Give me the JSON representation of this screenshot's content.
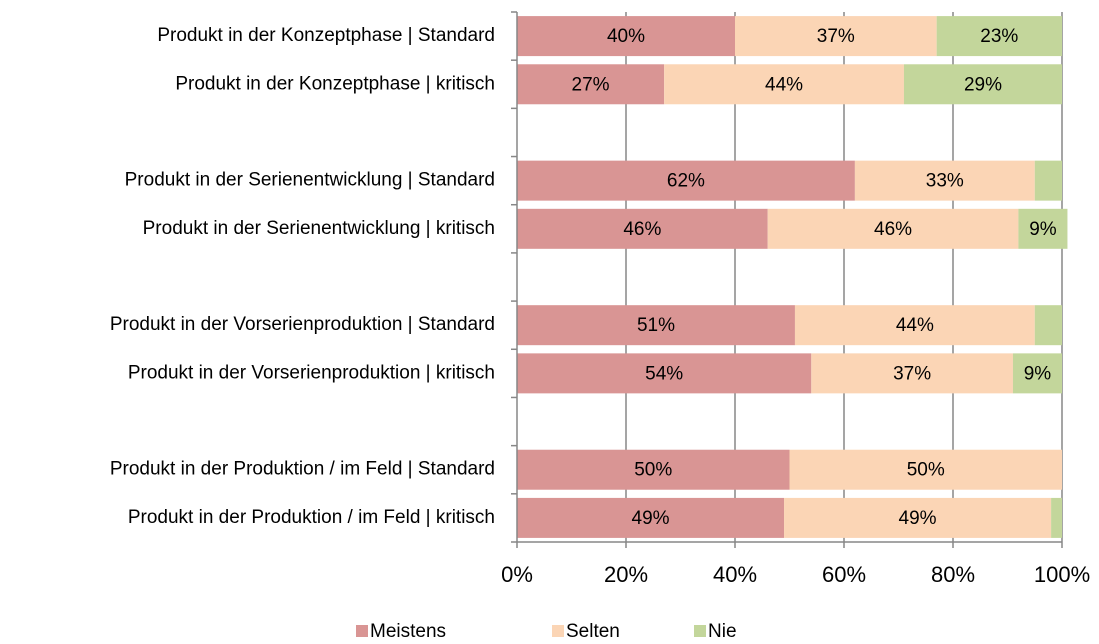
{
  "chart_data": {
    "type": "stacked_barh",
    "categories": [
      "Produkt in der Konzeptphase | Standard",
      "Produkt in der Konzeptphase | kritisch",
      null,
      "Produkt in der Serienentwicklung | Standard",
      "Produkt in der Serienentwicklung | kritisch",
      null,
      "Produkt in der Vorserienproduktion | Standard",
      "Produkt in der Vorserienproduktion | kritisch",
      null,
      "Produkt in der Produktion / im Feld | Standard",
      "Produkt in der Produktion / im Feld | kritisch"
    ],
    "series": [
      {
        "name": "Meistens",
        "color": "#d99594",
        "values": [
          40,
          27,
          null,
          62,
          46,
          null,
          51,
          54,
          null,
          50,
          49
        ],
        "value_labels": [
          "40%",
          "27%",
          null,
          "62%",
          "46%",
          null,
          "51%",
          "54%",
          null,
          "50%",
          "49%"
        ]
      },
      {
        "name": "Selten",
        "color": "#fbd5b5",
        "values": [
          37,
          44,
          null,
          33,
          46,
          null,
          44,
          37,
          null,
          50,
          49
        ],
        "value_labels": [
          "37%",
          "44%",
          null,
          "33%",
          "46%",
          null,
          "44%",
          "37%",
          null,
          "50%",
          "49%"
        ]
      },
      {
        "name": "Nie",
        "color": "#c3d69b",
        "values": [
          23,
          29,
          null,
          5,
          9,
          null,
          5,
          9,
          null,
          0,
          2
        ],
        "value_labels": [
          "23%",
          "29%",
          null,
          null,
          "9%",
          null,
          null,
          "9%",
          null,
          null,
          null
        ]
      }
    ],
    "xlim": [
      0,
      100
    ],
    "xticks": [
      {
        "value": 0,
        "label": "0%"
      },
      {
        "value": 20,
        "label": "20%"
      },
      {
        "value": 40,
        "label": "40%"
      },
      {
        "value": 60,
        "label": "60%"
      },
      {
        "value": 80,
        "label": "80%"
      },
      {
        "value": 100,
        "label": "100%"
      }
    ],
    "grid": true,
    "legend": "bottom"
  }
}
